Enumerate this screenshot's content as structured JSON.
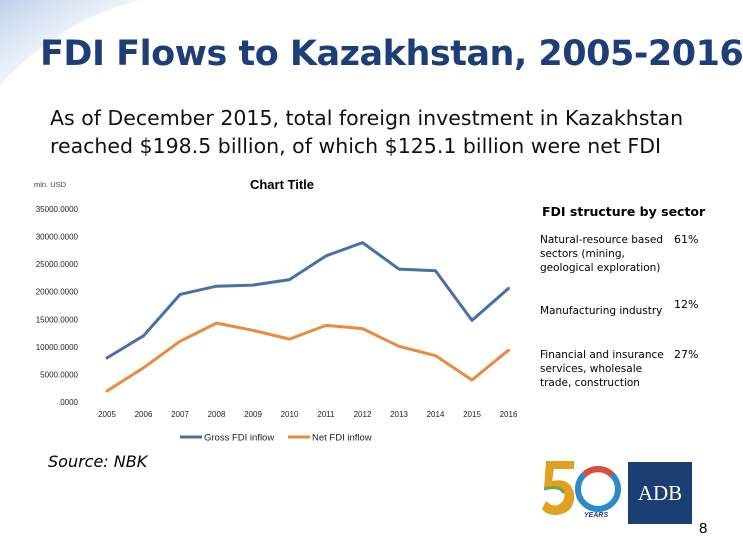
{
  "slide": {
    "title": "FDI Flows to Kazakhstan, 2005-2016",
    "subtitle": "As of December 2015, total foreign investment in Kazakhstan reached $198.5 billion, of which  $125.1 billion were net FDI",
    "source": "Source: NBK",
    "page_number": "8",
    "adb_logo_text": "ADB",
    "logo50_text": "YEARS"
  },
  "colors": {
    "title": "#1f3e78",
    "gross": "#4a6fa5",
    "net": "#e98b3e",
    "adb": "#1c3f73"
  },
  "chart_data": {
    "type": "line",
    "title": "Chart Title",
    "ylabel": "mln. USD",
    "xlabel": "",
    "x": [
      "2005",
      "2006",
      "2007",
      "2008",
      "2009",
      "2010",
      "2011",
      "2012",
      "2013",
      "2014",
      "2015",
      "2016"
    ],
    "y_ticks": [
      "35000.0000",
      "30000.0000",
      "25000.0000",
      "20000.0000",
      "15000.0000",
      "10000.0000",
      "5000.0000",
      ".0000"
    ],
    "ylim": [
      0,
      35000
    ],
    "grid": false,
    "legend_position": "bottom",
    "series": [
      {
        "name": "Gross FDI inflow",
        "values": [
          8000,
          12000,
          19500,
          21000,
          21200,
          22200,
          26500,
          28900,
          24100,
          23800,
          14800,
          20600
        ]
      },
      {
        "name": "Net FDI inflow",
        "values": [
          2000,
          6200,
          11000,
          14300,
          13000,
          11400,
          13900,
          13300,
          10100,
          8400,
          4000,
          9400
        ]
      }
    ]
  },
  "fdi_structure": {
    "title": "FDI structure by sector",
    "items": [
      {
        "label": "Natural-resource based sectors (mining, geological exploration)",
        "share": "61%"
      },
      {
        "label": "Manufacturing industry",
        "share": "12%"
      },
      {
        "label": "Financial and insurance services, wholesale trade, construction",
        "share": "27%"
      }
    ]
  }
}
